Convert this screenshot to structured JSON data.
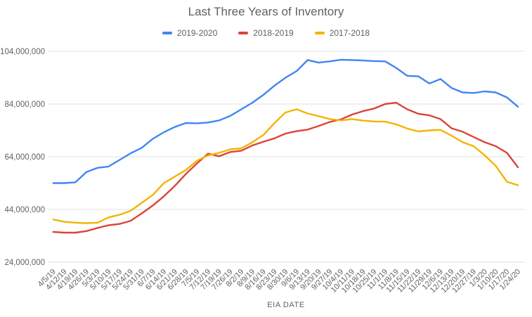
{
  "chart_data": {
    "type": "line",
    "title": "Last Three Years of Inventory",
    "xlabel": "EIA DATE",
    "ylabel": "",
    "grid": "horizontal",
    "legend_position": "top",
    "ylim": [
      24000000,
      104000000
    ],
    "y_ticks": [
      24000000,
      44000000,
      64000000,
      84000000,
      104000000
    ],
    "y_tick_labels": [
      "24,000,000",
      "44,000,000",
      "64,000,000",
      "84,000,000",
      "104,000,000"
    ],
    "x": [
      "4/5/19",
      "4/12/19",
      "4/19/19",
      "4/26/19",
      "5/3/19",
      "5/10/19",
      "5/17/19",
      "5/24/19",
      "5/31/19",
      "6/7/19",
      "6/14/19",
      "6/21/19",
      "6/28/19",
      "7/5/19",
      "7/12/19",
      "7/19/19",
      "7/26/19",
      "8/2/19",
      "8/9/19",
      "8/16/19",
      "8/23/19",
      "8/30/19",
      "9/6/19",
      "9/13/19",
      "9/20/19",
      "9/27/19",
      "10/4/19",
      "10/11/19",
      "10/18/19",
      "10/25/19",
      "11/1/19",
      "11/8/19",
      "11/15/19",
      "11/22/19",
      "11/29/19",
      "12/6/19",
      "12/13/19",
      "12/20/19",
      "12/27/19",
      "1/3/20",
      "1/10/20",
      "1/17/20",
      "1/24/20"
    ],
    "series": [
      {
        "name": "2019-2020",
        "color": "#4285F4",
        "values": [
          54000000,
          54000000,
          54300000,
          58200000,
          59800000,
          60300000,
          62800000,
          65300000,
          67400000,
          70800000,
          73300000,
          75300000,
          76800000,
          76700000,
          77000000,
          77800000,
          79500000,
          82000000,
          84500000,
          87500000,
          91000000,
          94000000,
          96500000,
          100700000,
          99700000,
          100200000,
          100800000,
          100700000,
          100500000,
          100300000,
          100200000,
          97700000,
          94700000,
          94500000,
          91800000,
          93500000,
          90100000,
          88400000,
          88200000,
          88800000,
          88400000,
          86500000,
          83000000
        ]
      },
      {
        "name": "2018-2019",
        "color": "#DB4437",
        "values": [
          35500000,
          35200000,
          35200000,
          35800000,
          37000000,
          38000000,
          38500000,
          39700000,
          42500000,
          45500000,
          49000000,
          53000000,
          57500000,
          61500000,
          65200000,
          64200000,
          65800000,
          66300000,
          68300000,
          69700000,
          71000000,
          72800000,
          73700000,
          74300000,
          75700000,
          77200000,
          78200000,
          80000000,
          81300000,
          82300000,
          84000000,
          84500000,
          82000000,
          80300000,
          79700000,
          78300000,
          74800000,
          73500000,
          71500000,
          69500000,
          68000000,
          65500000,
          60000000
        ]
      },
      {
        "name": "2017-2018",
        "color": "#F4B400",
        "values": [
          40200000,
          39300000,
          39000000,
          38800000,
          39000000,
          41000000,
          42000000,
          43500000,
          46500000,
          49500000,
          54000000,
          56500000,
          59000000,
          62500000,
          64500000,
          65500000,
          66800000,
          67200000,
          69500000,
          72300000,
          76800000,
          80800000,
          82000000,
          80400000,
          79400000,
          78300000,
          77800000,
          78300000,
          77700000,
          77400000,
          77300000,
          76300000,
          74700000,
          73600000,
          74000000,
          74200000,
          72000000,
          69500000,
          68000000,
          64500000,
          60500000,
          54500000,
          53200000
        ]
      }
    ],
    "colors": {
      "background": "#FFFFFF",
      "gridline": "#E0E0E0",
      "title_text": "#616161",
      "axis_text": "#616161",
      "series_blue": "#4285F4",
      "series_red": "#DB4437",
      "series_yellow": "#F4B400"
    }
  }
}
